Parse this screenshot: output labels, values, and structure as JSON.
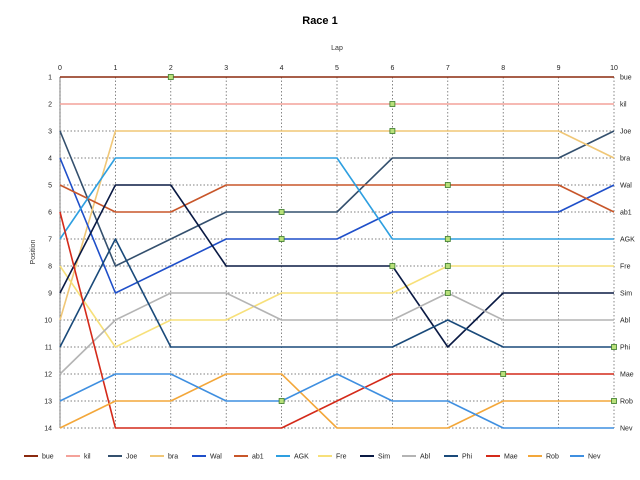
{
  "chart_data": {
    "type": "line",
    "title": "Race 1",
    "xlabel": "Lap",
    "ylabel": "Position",
    "xlim": [
      0,
      10
    ],
    "ylim": [
      1,
      14
    ],
    "x_ticks": [
      "0",
      "1",
      "2",
      "3",
      "4",
      "5",
      "6",
      "7",
      "8",
      "9",
      "10"
    ],
    "y_ticks": [
      "1",
      "2",
      "3",
      "4",
      "5",
      "6",
      "7",
      "8",
      "9",
      "10",
      "11",
      "12",
      "13",
      "14"
    ],
    "grid": true,
    "legend_position": "bottom",
    "x": [
      0,
      1,
      2,
      3,
      4,
      5,
      6,
      7,
      8,
      9,
      10
    ],
    "series": [
      {
        "name": "bue",
        "color": "#8b2a0f",
        "values": [
          1,
          1,
          1,
          1,
          1,
          1,
          1,
          1,
          1,
          1,
          1
        ],
        "markers": [
          2
        ]
      },
      {
        "name": "kil",
        "color": "#f4a29a",
        "values": [
          2,
          2,
          2,
          2,
          2,
          2,
          2,
          2,
          2,
          2,
          2
        ],
        "markers": [
          6
        ]
      },
      {
        "name": "Joe",
        "color": "#34506e",
        "values": [
          3,
          8,
          7,
          6,
          6,
          6,
          4,
          4,
          4,
          4,
          3
        ],
        "markers": [
          4
        ]
      },
      {
        "name": "bra",
        "color": "#f0c777",
        "values": [
          10,
          3,
          3,
          3,
          3,
          3,
          3,
          3,
          3,
          3,
          4
        ],
        "markers": [
          6
        ]
      },
      {
        "name": "Wal",
        "color": "#1f4fc9",
        "values": [
          4,
          9,
          8,
          7,
          7,
          7,
          6,
          6,
          6,
          6,
          5
        ],
        "markers": [
          4
        ]
      },
      {
        "name": "ab1",
        "color": "#c8562a",
        "values": [
          5,
          6,
          6,
          5,
          5,
          5,
          5,
          5,
          5,
          5,
          6
        ],
        "markers": [
          7
        ]
      },
      {
        "name": "AGK",
        "color": "#2e9fe0",
        "values": [
          7,
          4,
          4,
          4,
          4,
          4,
          7,
          7,
          7,
          7,
          7
        ],
        "markers": [
          7
        ]
      },
      {
        "name": "Fre",
        "color": "#f7e07a",
        "values": [
          8,
          11,
          10,
          10,
          9,
          9,
          9,
          8,
          8,
          8,
          8
        ],
        "markers": [
          7
        ]
      },
      {
        "name": "Sim",
        "color": "#0a1a44",
        "values": [
          9,
          5,
          5,
          8,
          8,
          8,
          8,
          11,
          9,
          9,
          9
        ],
        "markers": [
          6
        ]
      },
      {
        "name": "Abl",
        "color": "#b4b4b4",
        "values": [
          12,
          10,
          9,
          9,
          10,
          10,
          10,
          9,
          10,
          10,
          10
        ],
        "markers": [
          7
        ]
      },
      {
        "name": "Phi",
        "color": "#1a4a7a",
        "values": [
          11,
          7,
          11,
          11,
          11,
          11,
          11,
          10,
          11,
          11,
          11
        ],
        "markers": [
          10
        ]
      },
      {
        "name": "Mae",
        "color": "#d42a1a",
        "values": [
          6,
          14,
          14,
          14,
          14,
          13,
          12,
          12,
          12,
          12,
          12
        ],
        "markers": [
          8
        ]
      },
      {
        "name": "Rob",
        "color": "#f3a73a",
        "values": [
          14,
          13,
          13,
          12,
          12,
          14,
          14,
          14,
          13,
          13,
          13
        ],
        "markers": [
          10
        ]
      },
      {
        "name": "Nev",
        "color": "#3f8fe0",
        "values": [
          13,
          12,
          12,
          13,
          13,
          12,
          13,
          13,
          14,
          14,
          14
        ],
        "markers": [
          4
        ]
      }
    ]
  }
}
